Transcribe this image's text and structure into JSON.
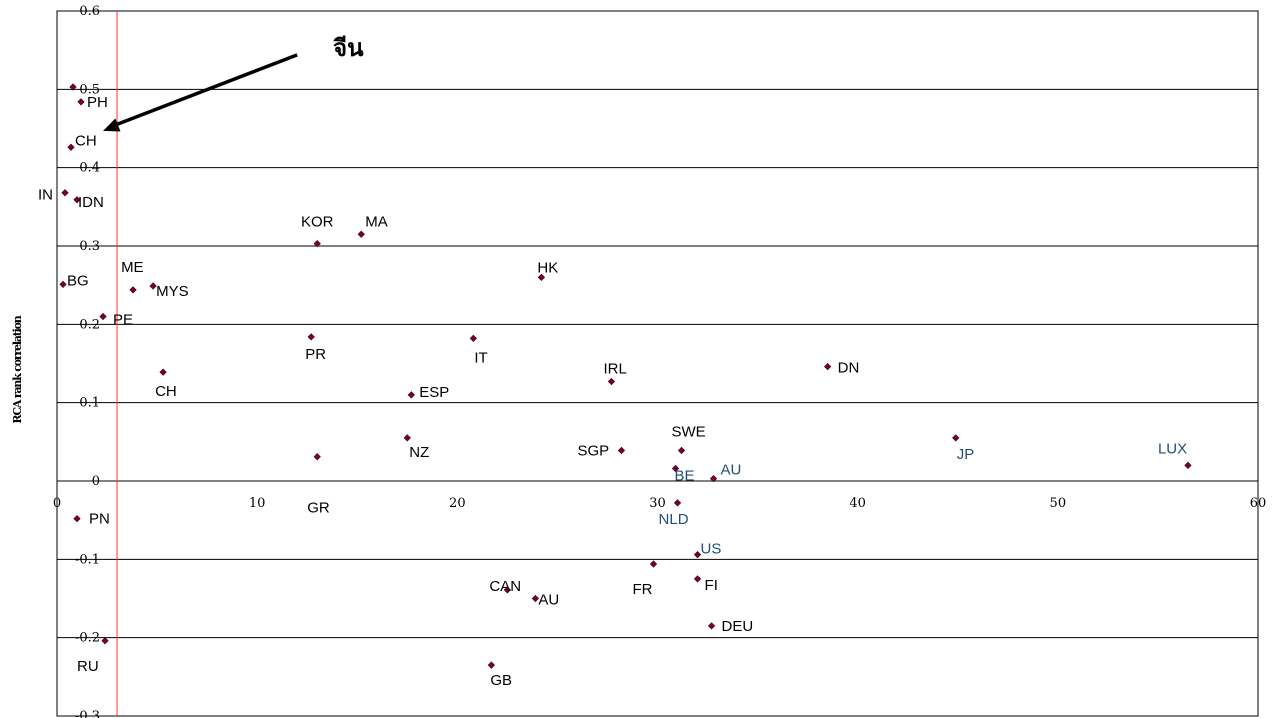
{
  "chart_data": {
    "type": "scatter",
    "title": "",
    "xlabel": "",
    "ylabel": "RCA rank correlation",
    "xlim": [
      0,
      60
    ],
    "ylim": [
      -0.3,
      0.6
    ],
    "x_ticks": [
      "0",
      "10",
      "20",
      "30",
      "40",
      "50",
      "60"
    ],
    "y_ticks": [
      "0.6",
      "0.5",
      "0.4",
      "0.3",
      "0.2",
      "0.1",
      "0",
      "-0.1",
      "-0.2",
      "-0.3"
    ],
    "grid": "horizontal",
    "marker_color": "#7a0030",
    "reference_line": {
      "x": 3,
      "color": "#ff3333"
    },
    "annotation": {
      "text": "จีน",
      "arrow_from": [
        12,
        0.544
      ],
      "arrow_to": [
        2.3,
        0.447
      ]
    },
    "points": [
      {
        "label": "PH",
        "x": 1.2,
        "y": 0.484,
        "color": "#000000"
      },
      {
        "label": "",
        "x": 0.8,
        "y": 0.503,
        "color": "#000000"
      },
      {
        "label": "CH",
        "x": 0.7,
        "y": 0.426,
        "color": "#000000"
      },
      {
        "label": "IN",
        "x": 0.4,
        "y": 0.368,
        "color": "#000000"
      },
      {
        "label": "IDN",
        "x": 1.0,
        "y": 0.359,
        "color": "#000000"
      },
      {
        "label": "KOR",
        "x": 13.0,
        "y": 0.303,
        "color": "#000000"
      },
      {
        "label": "MA",
        "x": 15.2,
        "y": 0.315,
        "color": "#000000"
      },
      {
        "label": "BG",
        "x": 0.3,
        "y": 0.251,
        "color": "#000000"
      },
      {
        "label": "ME",
        "x": 3.8,
        "y": 0.244,
        "color": "#000000"
      },
      {
        "label": "MYS",
        "x": 4.8,
        "y": 0.249,
        "color": "#000000"
      },
      {
        "label": "HK",
        "x": 24.2,
        "y": 0.26,
        "color": "#000000"
      },
      {
        "label": "PE",
        "x": 2.3,
        "y": 0.21,
        "color": "#000000"
      },
      {
        "label": "PR",
        "x": 12.7,
        "y": 0.184,
        "color": "#000000"
      },
      {
        "label": "IT",
        "x": 20.8,
        "y": 0.182,
        "color": "#000000"
      },
      {
        "label": "CH",
        "x": 5.3,
        "y": 0.139,
        "color": "#000000"
      },
      {
        "label": "IRL",
        "x": 27.7,
        "y": 0.127,
        "color": "#000000"
      },
      {
        "label": "DN",
        "x": 38.5,
        "y": 0.146,
        "color": "#000000"
      },
      {
        "label": "ESP",
        "x": 17.7,
        "y": 0.11,
        "color": "#000000"
      },
      {
        "label": "NZ",
        "x": 17.5,
        "y": 0.055,
        "color": "#000000"
      },
      {
        "label": "GR",
        "x": 13.0,
        "y": 0.031,
        "color": "#000000"
      },
      {
        "label": "SGP",
        "x": 28.2,
        "y": 0.039,
        "color": "#000000"
      },
      {
        "label": "SWE",
        "x": 31.2,
        "y": 0.039,
        "color": "#000000"
      },
      {
        "label": "JP",
        "x": 44.9,
        "y": 0.055,
        "color": "#1f4e79"
      },
      {
        "label": "LUX",
        "x": 56.5,
        "y": 0.02,
        "color": "#1f4e79"
      },
      {
        "label": "BE",
        "x": 30.9,
        "y": 0.016,
        "color": "#1f4e79"
      },
      {
        "label": "AU",
        "x": 32.8,
        "y": 0.003,
        "color": "#1f4e79"
      },
      {
        "label": "PN",
        "x": 1.0,
        "y": -0.048,
        "color": "#000000"
      },
      {
        "label": "NLD",
        "x": 31.0,
        "y": -0.028,
        "color": "#1f4e79"
      },
      {
        "label": "US",
        "x": 32.0,
        "y": -0.094,
        "color": "#1f4e79"
      },
      {
        "label": "FR",
        "x": 29.8,
        "y": -0.106,
        "color": "#000000"
      },
      {
        "label": "FI",
        "x": 32.0,
        "y": -0.125,
        "color": "#000000"
      },
      {
        "label": "CAN",
        "x": 22.5,
        "y": -0.139,
        "color": "#000000"
      },
      {
        "label": "AU",
        "x": 23.9,
        "y": -0.15,
        "color": "#000000"
      },
      {
        "label": "DEU",
        "x": 32.7,
        "y": -0.185,
        "color": "#000000"
      },
      {
        "label": "RU",
        "x": 2.4,
        "y": -0.204,
        "color": "#000000"
      },
      {
        "label": "GB",
        "x": 21.7,
        "y": -0.235,
        "color": "#000000"
      }
    ]
  }
}
